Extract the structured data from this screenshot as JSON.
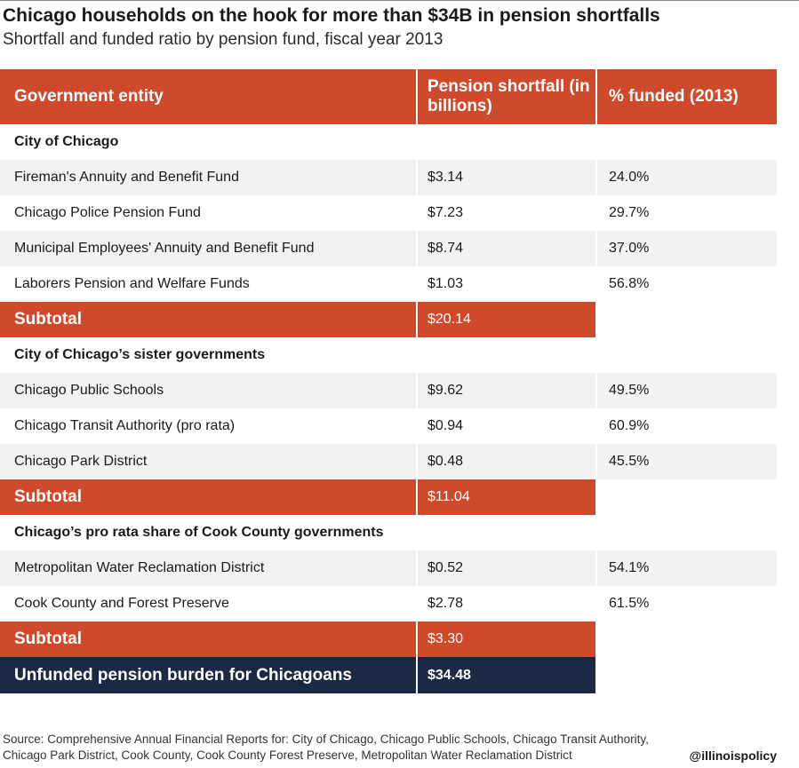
{
  "chart_data": {
    "type": "table",
    "title": "Chicago households on the hook for more than $34B in pension shortfalls",
    "subtitle": "Shortfall and funded ratio by pension fund, fiscal year 2013",
    "columns": [
      "Government entity",
      "Pension shortfall (in billions)",
      "% funded (2013)"
    ],
    "rows": [
      {
        "kind": "section",
        "entity": "City of Chicago",
        "shortfall": "",
        "funded": ""
      },
      {
        "kind": "data",
        "entity": "Fireman's Annuity and Benefit Fund",
        "shortfall": "$3.14",
        "funded": "24.0%"
      },
      {
        "kind": "data",
        "entity": "Chicago Police Pension Fund",
        "shortfall": "$7.23",
        "funded": "29.7%"
      },
      {
        "kind": "data",
        "entity": "Municipal Employees' Annuity and Benefit Fund",
        "shortfall": "$8.74",
        "funded": "37.0%"
      },
      {
        "kind": "data",
        "entity": "Laborers Pension and Welfare Funds",
        "shortfall": "$1.03",
        "funded": "56.8%"
      },
      {
        "kind": "subtotal",
        "entity": "Subtotal",
        "shortfall": "$20.14",
        "funded": ""
      },
      {
        "kind": "section",
        "entity": "City of Chicago’s sister governments",
        "shortfall": "",
        "funded": ""
      },
      {
        "kind": "data",
        "entity": "Chicago Public Schools",
        "shortfall": "$9.62",
        "funded": "49.5%"
      },
      {
        "kind": "data",
        "entity": "Chicago Transit Authority (pro rata)",
        "shortfall": "$0.94",
        "funded": "60.9%"
      },
      {
        "kind": "data",
        "entity": "Chicago Park District",
        "shortfall": "$0.48",
        "funded": "45.5%"
      },
      {
        "kind": "subtotal",
        "entity": "Subtotal",
        "shortfall": "$11.04",
        "funded": ""
      },
      {
        "kind": "section",
        "entity": "Chicago’s pro rata share of Cook County governments",
        "shortfall": "",
        "funded": ""
      },
      {
        "kind": "data",
        "entity": "Metropolitan Water Reclamation District",
        "shortfall": "$0.52",
        "funded": "54.1%"
      },
      {
        "kind": "data",
        "entity": "Cook County and Forest Preserve",
        "shortfall": "$2.78",
        "funded": "61.5%"
      },
      {
        "kind": "subtotal",
        "entity": "Subtotal",
        "shortfall": "$3.30",
        "funded": ""
      },
      {
        "kind": "total",
        "entity": "Unfunded pension burden for Chicagoans",
        "shortfall": "$34.48",
        "funded": ""
      }
    ]
  },
  "source": "Source: Comprehensive Annual Financial Reports for: City of Chicago, Chicago Public Schools, Chicago Transit Authority, Chicago Park District, Cook County, Cook County Forest Preserve, Metropolitan Water Reclamation District",
  "handle": "@illinoispolicy",
  "colors": {
    "accent": "#cf4a2c",
    "total": "#1b2a44",
    "stripe": "#f2f2f2"
  }
}
